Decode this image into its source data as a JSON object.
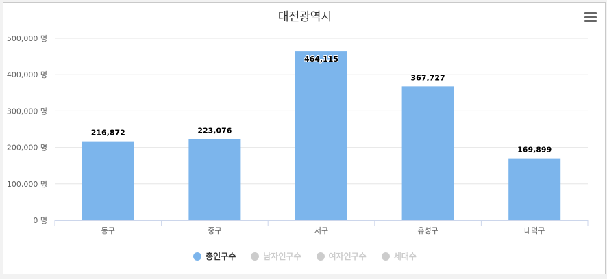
{
  "chart_data": {
    "type": "bar",
    "title": "대전광역시",
    "categories": [
      "동구",
      "중구",
      "서구",
      "유성구",
      "대덕구"
    ],
    "series": [
      {
        "name": "총인구수",
        "values": [
          216872,
          223076,
          464115,
          367727,
          169899
        ],
        "visible": true
      },
      {
        "name": "남자인구수",
        "visible": false
      },
      {
        "name": "여자인구수",
        "visible": false
      },
      {
        "name": "세대수",
        "visible": false
      }
    ],
    "data_labels": [
      "216,872",
      "223,076",
      "464,115",
      "367,727",
      "169,899"
    ],
    "y_ticks": [
      0,
      100000,
      200000,
      300000,
      400000,
      500000
    ],
    "y_tick_labels": [
      "0 명",
      "100,000 명",
      "200,000 명",
      "300,000 명",
      "400,000 명",
      "500,000 명"
    ],
    "ylim": [
      0,
      500000
    ],
    "grid": true,
    "legend_position": "bottom-center"
  },
  "colors": {
    "bar": "#7cb5ec",
    "inactive_legend": "#cccccc",
    "grid": "#e6e6e6"
  },
  "menu_icon": "hamburger-menu-icon"
}
